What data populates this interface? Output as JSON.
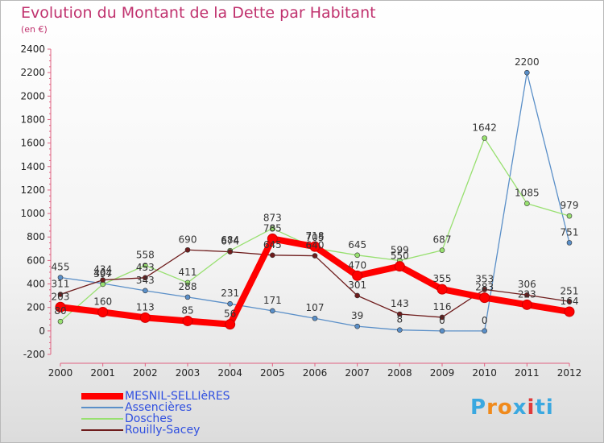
{
  "title": "Evolution du Montant de la Dette par Habitant",
  "subtitle": "(en €)",
  "logo": {
    "text": "Proxiti",
    "colors": [
      "#3aa8e0",
      "#f08a1c",
      "#f08a1c",
      "#3aa8e0",
      "#e03a3a",
      "#3aa8e0",
      "#3aa8e0"
    ]
  },
  "chart_data": {
    "type": "line",
    "title": "Evolution du Montant de la Dette par Habitant",
    "subtitle": "(en €)",
    "x": [
      "2000",
      "2001",
      "2002",
      "2003",
      "2004",
      "2005",
      "2006",
      "2007",
      "2008",
      "2009",
      "2010",
      "2011",
      "2012"
    ],
    "yticks": [
      -200,
      0,
      200,
      400,
      600,
      800,
      1000,
      1200,
      1400,
      1600,
      1800,
      2000,
      2200,
      2400
    ],
    "ylim": [
      -200,
      2400
    ],
    "grid": false,
    "legend_position": "bottom-left",
    "series": [
      {
        "name": "MESNIL-SELLIèRES",
        "color": "#ff0000",
        "width": 8,
        "marker": 6,
        "values": [
          203,
          160,
          113,
          85,
          56,
          785,
          718,
          470,
          550,
          355,
          283,
          223,
          164
        ],
        "labels": [
          "203",
          "160",
          "113",
          "85",
          "56",
          "785",
          "718",
          "470",
          "550",
          "355",
          "283",
          "223",
          "164"
        ]
      },
      {
        "name": "Assencières",
        "color": "#5a8fc8",
        "width": 1.3,
        "marker": 3,
        "values": [
          455,
          404,
          343,
          288,
          231,
          171,
          107,
          39,
          8,
          0,
          0,
          2200,
          751
        ],
        "labels": [
          "455",
          "404",
          "343",
          "288",
          "231",
          "171",
          "107",
          "39",
          "8",
          "0",
          "0",
          "2200",
          "751"
        ]
      },
      {
        "name": "Dosches",
        "color": "#98e070",
        "width": 1.3,
        "marker": 3,
        "values": [
          80,
          397,
          558,
          411,
          684,
          873,
          705,
          645,
          599,
          687,
          1642,
          1085,
          979
        ],
        "labels": [
          "80",
          "397",
          "558",
          "411",
          "684",
          "873",
          "705",
          "645",
          "599",
          "687",
          "1642",
          "1085",
          "979"
        ]
      },
      {
        "name": "Rouilly-Sacey",
        "color": "#6e1c1c",
        "width": 1.3,
        "marker": 3,
        "values": [
          311,
          434,
          453,
          690,
          674,
          645,
          640,
          301,
          143,
          116,
          353,
          306,
          251
        ],
        "labels": [
          "311",
          "434",
          "453",
          "690",
          "674",
          "645",
          "640",
          "301",
          "143",
          "116",
          "353",
          "306",
          "251"
        ]
      }
    ]
  }
}
